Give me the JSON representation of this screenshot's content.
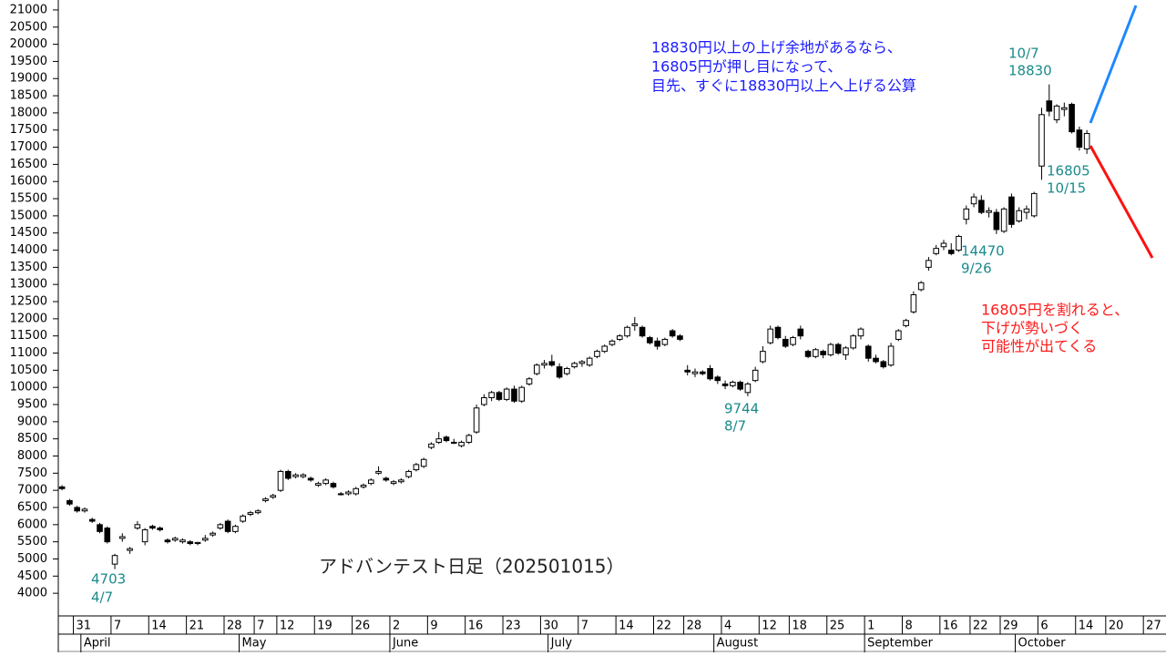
{
  "chart_data": {
    "type": "candlestick",
    "title": "アドバンテスト日足（202501015）",
    "ylim": [
      3340,
      21290
    ],
    "yticks": [
      4000,
      4500,
      5000,
      5500,
      6000,
      6500,
      7000,
      7500,
      8000,
      8500,
      9000,
      9500,
      10000,
      10500,
      11000,
      11500,
      12000,
      12500,
      13000,
      13500,
      14000,
      14500,
      15000,
      15500,
      16000,
      16500,
      17000,
      17500,
      18000,
      18500,
      19000,
      19500,
      20000,
      20500,
      21000
    ],
    "grid": false,
    "up_color": "#ffffff",
    "down_color": "#000000",
    "categories": [
      null,
      null,
      "31",
      null,
      null,
      null,
      null,
      "7",
      null,
      null,
      null,
      null,
      "14",
      null,
      null,
      null,
      null,
      "21",
      null,
      null,
      null,
      null,
      "28",
      null,
      null,
      null,
      "7",
      null,
      null,
      "12",
      null,
      null,
      null,
      null,
      "19",
      null,
      null,
      null,
      null,
      "26",
      null,
      null,
      null,
      null,
      "2",
      null,
      null,
      null,
      null,
      "9",
      null,
      null,
      null,
      null,
      "16",
      null,
      null,
      null,
      null,
      "23",
      null,
      null,
      null,
      null,
      "30",
      null,
      null,
      null,
      null,
      "7",
      null,
      null,
      null,
      null,
      "14",
      null,
      null,
      null,
      null,
      "22",
      null,
      null,
      null,
      "28",
      null,
      null,
      null,
      null,
      "4",
      null,
      null,
      null,
      null,
      "12",
      null,
      null,
      null,
      "18",
      null,
      null,
      null,
      null,
      "25",
      null,
      null,
      null,
      null,
      "1",
      null,
      null,
      null,
      null,
      "8",
      null,
      null,
      null,
      null,
      "16",
      null,
      null,
      null,
      "22",
      null,
      null,
      null,
      "29",
      null,
      null,
      null,
      null,
      "6",
      null,
      null,
      null,
      null,
      "14",
      null,
      null,
      null,
      "20",
      null,
      null,
      null,
      null,
      "27",
      null,
      null
    ],
    "months": [
      {
        "value": 3,
        "label": "April"
      },
      {
        "value": 24,
        "label": "May"
      },
      {
        "value": 44,
        "label": "June"
      },
      {
        "value": 65,
        "label": "July"
      },
      {
        "value": 87,
        "label": "August"
      },
      {
        "value": 107,
        "label": "September"
      },
      {
        "value": 127,
        "label": "October"
      }
    ],
    "candles": [
      [
        7100,
        7150,
        7000,
        7050
      ],
      [
        6700,
        6750,
        6550,
        6600
      ],
      [
        6500,
        6550,
        6350,
        6400
      ],
      [
        6400,
        6500,
        6350,
        6450
      ],
      [
        6150,
        6200,
        6050,
        6100
      ],
      [
        6000,
        6050,
        5750,
        5800
      ],
      [
        5900,
        5950,
        5450,
        5500
      ],
      [
        4850,
        5150,
        4703,
        5100
      ],
      [
        5600,
        5750,
        5500,
        5650
      ],
      [
        5250,
        5350,
        5150,
        5300
      ],
      [
        5900,
        6100,
        5850,
        6000
      ],
      [
        5500,
        5900,
        5400,
        5850
      ],
      [
        5950,
        6000,
        5850,
        5900
      ],
      [
        5900,
        5950,
        5800,
        5850
      ],
      [
        5550,
        5600,
        5450,
        5500
      ],
      [
        5550,
        5650,
        5500,
        5600
      ],
      [
        5500,
        5600,
        5450,
        5550
      ],
      [
        5500,
        5550,
        5400,
        5450
      ],
      [
        5450,
        5500,
        5400,
        5480
      ],
      [
        5550,
        5700,
        5500,
        5600
      ],
      [
        5700,
        5800,
        5650,
        5750
      ],
      [
        5900,
        6050,
        5850,
        6000
      ],
      [
        6100,
        6150,
        5750,
        5800
      ],
      [
        5800,
        6000,
        5750,
        5950
      ],
      [
        6100,
        6300,
        6050,
        6250
      ],
      [
        6300,
        6400,
        6250,
        6350
      ],
      [
        6350,
        6450,
        6300,
        6400
      ],
      [
        6700,
        6800,
        6650,
        6750
      ],
      [
        6800,
        6900,
        6750,
        6850
      ],
      [
        7000,
        7600,
        6950,
        7550
      ],
      [
        7550,
        7600,
        7300,
        7350
      ],
      [
        7400,
        7500,
        7350,
        7450
      ],
      [
        7400,
        7500,
        7350,
        7450
      ],
      [
        7350,
        7400,
        7250,
        7300
      ],
      [
        7150,
        7250,
        7100,
        7200
      ],
      [
        7200,
        7350,
        7150,
        7300
      ],
      [
        7200,
        7250,
        7050,
        7100
      ],
      [
        6900,
        6950,
        6850,
        6900
      ],
      [
        6900,
        7000,
        6850,
        6950
      ],
      [
        6900,
        7100,
        6850,
        7050
      ],
      [
        7100,
        7200,
        7050,
        7150
      ],
      [
        7200,
        7350,
        7150,
        7300
      ],
      [
        7500,
        7700,
        7450,
        7550
      ],
      [
        7350,
        7400,
        7250,
        7300
      ],
      [
        7200,
        7300,
        7150,
        7250
      ],
      [
        7250,
        7350,
        7200,
        7300
      ],
      [
        7400,
        7600,
        7350,
        7550
      ],
      [
        7600,
        7800,
        7550,
        7750
      ],
      [
        7700,
        7950,
        7650,
        7900
      ],
      [
        8250,
        8400,
        8200,
        8350
      ],
      [
        8400,
        8700,
        8350,
        8500
      ],
      [
        8550,
        8600,
        8400,
        8450
      ],
      [
        8400,
        8500,
        8350,
        8400
      ],
      [
        8300,
        8450,
        8250,
        8400
      ],
      [
        8400,
        8650,
        8350,
        8600
      ],
      [
        8700,
        9500,
        8650,
        9400
      ],
      [
        9500,
        9800,
        9450,
        9700
      ],
      [
        9700,
        9900,
        9600,
        9850
      ],
      [
        9850,
        9900,
        9600,
        9650
      ],
      [
        9650,
        10000,
        9600,
        9950
      ],
      [
        9950,
        10050,
        9550,
        9600
      ],
      [
        9600,
        10050,
        9550,
        10000
      ],
      [
        10100,
        10300,
        10050,
        10250
      ],
      [
        10400,
        10700,
        10350,
        10650
      ],
      [
        10650,
        10800,
        10550,
        10700
      ],
      [
        10750,
        10950,
        10600,
        10650
      ],
      [
        10600,
        10700,
        10250,
        10300
      ],
      [
        10400,
        10600,
        10350,
        10550
      ],
      [
        10600,
        10750,
        10550,
        10700
      ],
      [
        10700,
        10800,
        10600,
        10750
      ],
      [
        10650,
        10900,
        10600,
        10850
      ],
      [
        10900,
        11100,
        10850,
        11050
      ],
      [
        11050,
        11250,
        11000,
        11200
      ],
      [
        11250,
        11400,
        11200,
        11350
      ],
      [
        11400,
        11550,
        11350,
        11500
      ],
      [
        11500,
        11800,
        11450,
        11750
      ],
      [
        11800,
        12050,
        11650,
        11850
      ],
      [
        11750,
        11800,
        11450,
        11500
      ],
      [
        11450,
        11500,
        11250,
        11300
      ],
      [
        11350,
        11450,
        11100,
        11200
      ],
      [
        11250,
        11450,
        11200,
        11400
      ],
      [
        11650,
        11700,
        11450,
        11500
      ],
      [
        11500,
        11550,
        11350,
        11400
      ],
      [
        10500,
        10650,
        10350,
        10450
      ],
      [
        10400,
        10550,
        10300,
        10450
      ],
      [
        10450,
        10500,
        10350,
        10400
      ],
      [
        10550,
        10650,
        10200,
        10250
      ],
      [
        10300,
        10350,
        10100,
        10200
      ],
      [
        10100,
        10200,
        9950,
        10050
      ],
      [
        10050,
        10200,
        10000,
        10150
      ],
      [
        10150,
        10200,
        9900,
        9950
      ],
      [
        9850,
        10150,
        9744,
        10100
      ],
      [
        10200,
        10600,
        10150,
        10500
      ],
      [
        10750,
        11200,
        10700,
        11050
      ],
      [
        11300,
        11800,
        11250,
        11700
      ],
      [
        11750,
        11800,
        11400,
        11450
      ],
      [
        11400,
        11500,
        11150,
        11200
      ],
      [
        11250,
        11500,
        11200,
        11450
      ],
      [
        11700,
        11800,
        11400,
        11500
      ],
      [
        11050,
        11100,
        10850,
        10900
      ],
      [
        10900,
        11150,
        10850,
        11100
      ],
      [
        11050,
        11100,
        10850,
        10950
      ],
      [
        10950,
        11300,
        10900,
        11250
      ],
      [
        11250,
        11300,
        10950,
        11000
      ],
      [
        10950,
        11200,
        10800,
        11150
      ],
      [
        11150,
        11550,
        11100,
        11500
      ],
      [
        11500,
        11750,
        11400,
        11700
      ],
      [
        11200,
        11250,
        10750,
        10850
      ],
      [
        10850,
        10950,
        10700,
        10750
      ],
      [
        10750,
        10800,
        10550,
        10600
      ],
      [
        10650,
        11300,
        10600,
        11200
      ],
      [
        11400,
        11700,
        11350,
        11650
      ],
      [
        11800,
        12000,
        11750,
        11950
      ],
      [
        12200,
        12800,
        12150,
        12700
      ],
      [
        12850,
        13100,
        12800,
        13050
      ],
      [
        13500,
        13800,
        13400,
        13700
      ],
      [
        13900,
        14150,
        13850,
        14050
      ],
      [
        14100,
        14300,
        14000,
        14200
      ],
      [
        14000,
        14200,
        13850,
        13900
      ],
      [
        14000,
        14450,
        13950,
        14400
      ],
      [
        14900,
        15300,
        14750,
        15200
      ],
      [
        15350,
        15650,
        15250,
        15550
      ],
      [
        15450,
        15600,
        15050,
        15100
      ],
      [
        15100,
        15250,
        14950,
        15150
      ],
      [
        15100,
        15200,
        14470,
        14600
      ],
      [
        14550,
        15250,
        14500,
        15200
      ],
      [
        15550,
        15650,
        14650,
        14750
      ],
      [
        14850,
        15250,
        14800,
        15150
      ],
      [
        15100,
        15300,
        14900,
        15200
      ],
      [
        15000,
        15700,
        14950,
        15650
      ],
      [
        16450,
        18150,
        16050,
        17950
      ],
      [
        18350,
        18830,
        17900,
        18050
      ],
      [
        17800,
        18250,
        17700,
        18200
      ],
      [
        18100,
        18300,
        17900,
        18150
      ],
      [
        18250,
        18300,
        17400,
        17450
      ],
      [
        17500,
        17600,
        16900,
        17000
      ],
      [
        16950,
        17500,
        16805,
        17400
      ],
      null,
      null,
      null,
      null,
      null,
      null,
      null,
      null,
      null,
      null
    ],
    "notes_blue": [
      "18830円以上の上げ余地があるなら、",
      "16805円が押し目になって、",
      "目先、すぐに18830円以上へ上げる公算"
    ],
    "notes_red": [
      "16805円を割れると、",
      "下げが勢いづく",
      "可能性が出てくる"
    ],
    "labels_peak": [
      "10/7",
      "18830"
    ],
    "labels_last": [
      "16805",
      "10/15"
    ],
    "labels_sep": [
      "14470",
      "9/26"
    ],
    "labels_aug": [
      "9744",
      "8/7"
    ],
    "labels_apr": [
      "4703",
      "4/7"
    ]
  }
}
